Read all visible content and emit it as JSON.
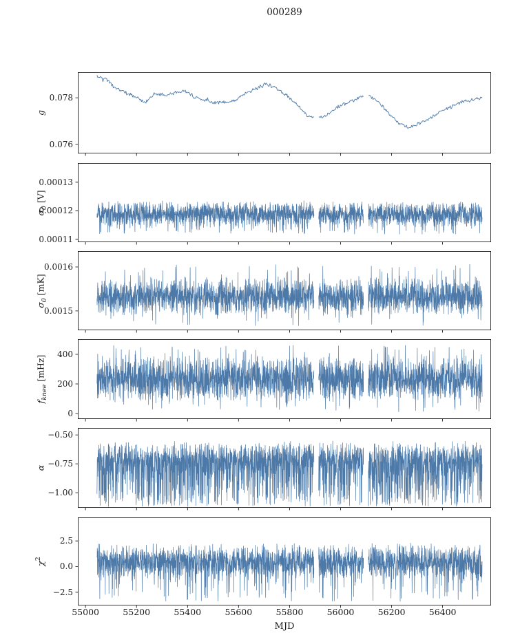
{
  "chart_data": {
    "type": "line",
    "title": "000289",
    "xlabel": "MJD",
    "line_color": "#4c79a8",
    "axis_color": "#000000",
    "xlim": [
      54970,
      56590
    ],
    "x_ticks": [
      55000,
      55200,
      55400,
      55600,
      55800,
      56000,
      56200,
      56400
    ],
    "x_data_range": [
      55045,
      56555
    ],
    "gaps": [
      [
        55896,
        55914
      ],
      [
        56090,
        56108
      ]
    ],
    "legend": "none",
    "grid": false,
    "panels": [
      {
        "ylabel_math": "g",
        "ylabel_sub": "",
        "ylabel_sup": "",
        "ylabel_unit": "",
        "ylim": [
          0.0756,
          0.0791
        ],
        "yticks": [
          0.076,
          0.078
        ],
        "ytick_labels": [
          "0.076",
          "0.078"
        ],
        "kind": "trend",
        "noise": 9e-05,
        "points": 520,
        "trend_x": [
          55045,
          55080,
          55120,
          55160,
          55200,
          55235,
          55270,
          55310,
          55350,
          55390,
          55430,
          55470,
          55510,
          55550,
          55590,
          55630,
          55670,
          55710,
          55750,
          55790,
          55830,
          55870,
          55910,
          55950,
          55990,
          56030,
          56070,
          56110,
          56150,
          56190,
          56230,
          56270,
          56310,
          56350,
          56390,
          56430,
          56470,
          56510,
          56555
        ],
        "trend_y": [
          0.0789,
          0.0788,
          0.0784,
          0.0782,
          0.078,
          0.0778,
          0.0782,
          0.0781,
          0.0782,
          0.0783,
          0.078,
          0.0779,
          0.0778,
          0.0778,
          0.0779,
          0.0782,
          0.0784,
          0.0786,
          0.0784,
          0.0781,
          0.0777,
          0.0772,
          0.0771,
          0.0773,
          0.0776,
          0.0778,
          0.078,
          0.0781,
          0.0778,
          0.0773,
          0.0769,
          0.0767,
          0.0769,
          0.0771,
          0.0774,
          0.0776,
          0.0778,
          0.0779,
          0.078
        ]
      },
      {
        "ylabel_math": "σ",
        "ylabel_sub": "0",
        "ylabel_sup": "",
        "ylabel_unit": " [V]",
        "ylim": [
          0.000109,
          0.0001367
        ],
        "yticks": [
          0.00011,
          0.00012,
          0.00013
        ],
        "ytick_labels": [
          "0.00011",
          "0.00012",
          "0.00013"
        ],
        "kind": "noise",
        "band": [
          0.0001142,
          0.0001236
        ],
        "spike_prob": 0.05,
        "spike_range": [
          0.0001118,
          0.0001148
        ],
        "points": 2600
      },
      {
        "ylabel_math": "σ",
        "ylabel_sub": "0",
        "ylabel_sup": "",
        "ylabel_unit": " [mK]",
        "ylim": [
          0.001456,
          0.001636
        ],
        "yticks": [
          0.0015,
          0.0016
        ],
        "ytick_labels": [
          "0.0015",
          "0.0016"
        ],
        "kind": "noise",
        "band": [
          0.001488,
          0.001578
        ],
        "spike_prob": 0.08,
        "spike_range": [
          0.001466,
          0.001606
        ],
        "points": 2600
      },
      {
        "ylabel_math": "f",
        "ylabel_sub": "knee",
        "ylabel_sup": "",
        "ylabel_unit": " [mHz]",
        "ylim": [
          -37,
          502
        ],
        "yticks": [
          0,
          200,
          400
        ],
        "ytick_labels": [
          "0",
          "200",
          "400"
        ],
        "kind": "noise",
        "band": [
          75,
          395
        ],
        "spike_prob": 0.1,
        "spike_range": [
          10,
          462
        ],
        "points": 2600
      },
      {
        "ylabel_math": "α",
        "ylabel_sub": "",
        "ylabel_sup": "",
        "ylabel_unit": "",
        "ylim": [
          -1.13,
          -0.44
        ],
        "yticks": [
          -0.5,
          -0.75,
          -1.0
        ],
        "ytick_labels": [
          "−0.50",
          "−0.75",
          "−1.00"
        ],
        "kind": "noise",
        "band": [
          -0.86,
          -0.55
        ],
        "spike_prob": 0.28,
        "spike_range": [
          -1.12,
          -0.8
        ],
        "points": 2600
      },
      {
        "ylabel_math": "χ",
        "ylabel_sub": "",
        "ylabel_sup": "2",
        "ylabel_unit": "",
        "ylim": [
          -3.8,
          4.8
        ],
        "yticks": [
          -2.5,
          0.0,
          2.5
        ],
        "ytick_labels": [
          "−2.5",
          "0.0",
          "2.5"
        ],
        "kind": "noise",
        "band": [
          -1.4,
          2.35
        ],
        "spike_prob": 0.05,
        "spike_range": [
          -3.4,
          -1.3
        ],
        "points": 2600
      }
    ]
  }
}
